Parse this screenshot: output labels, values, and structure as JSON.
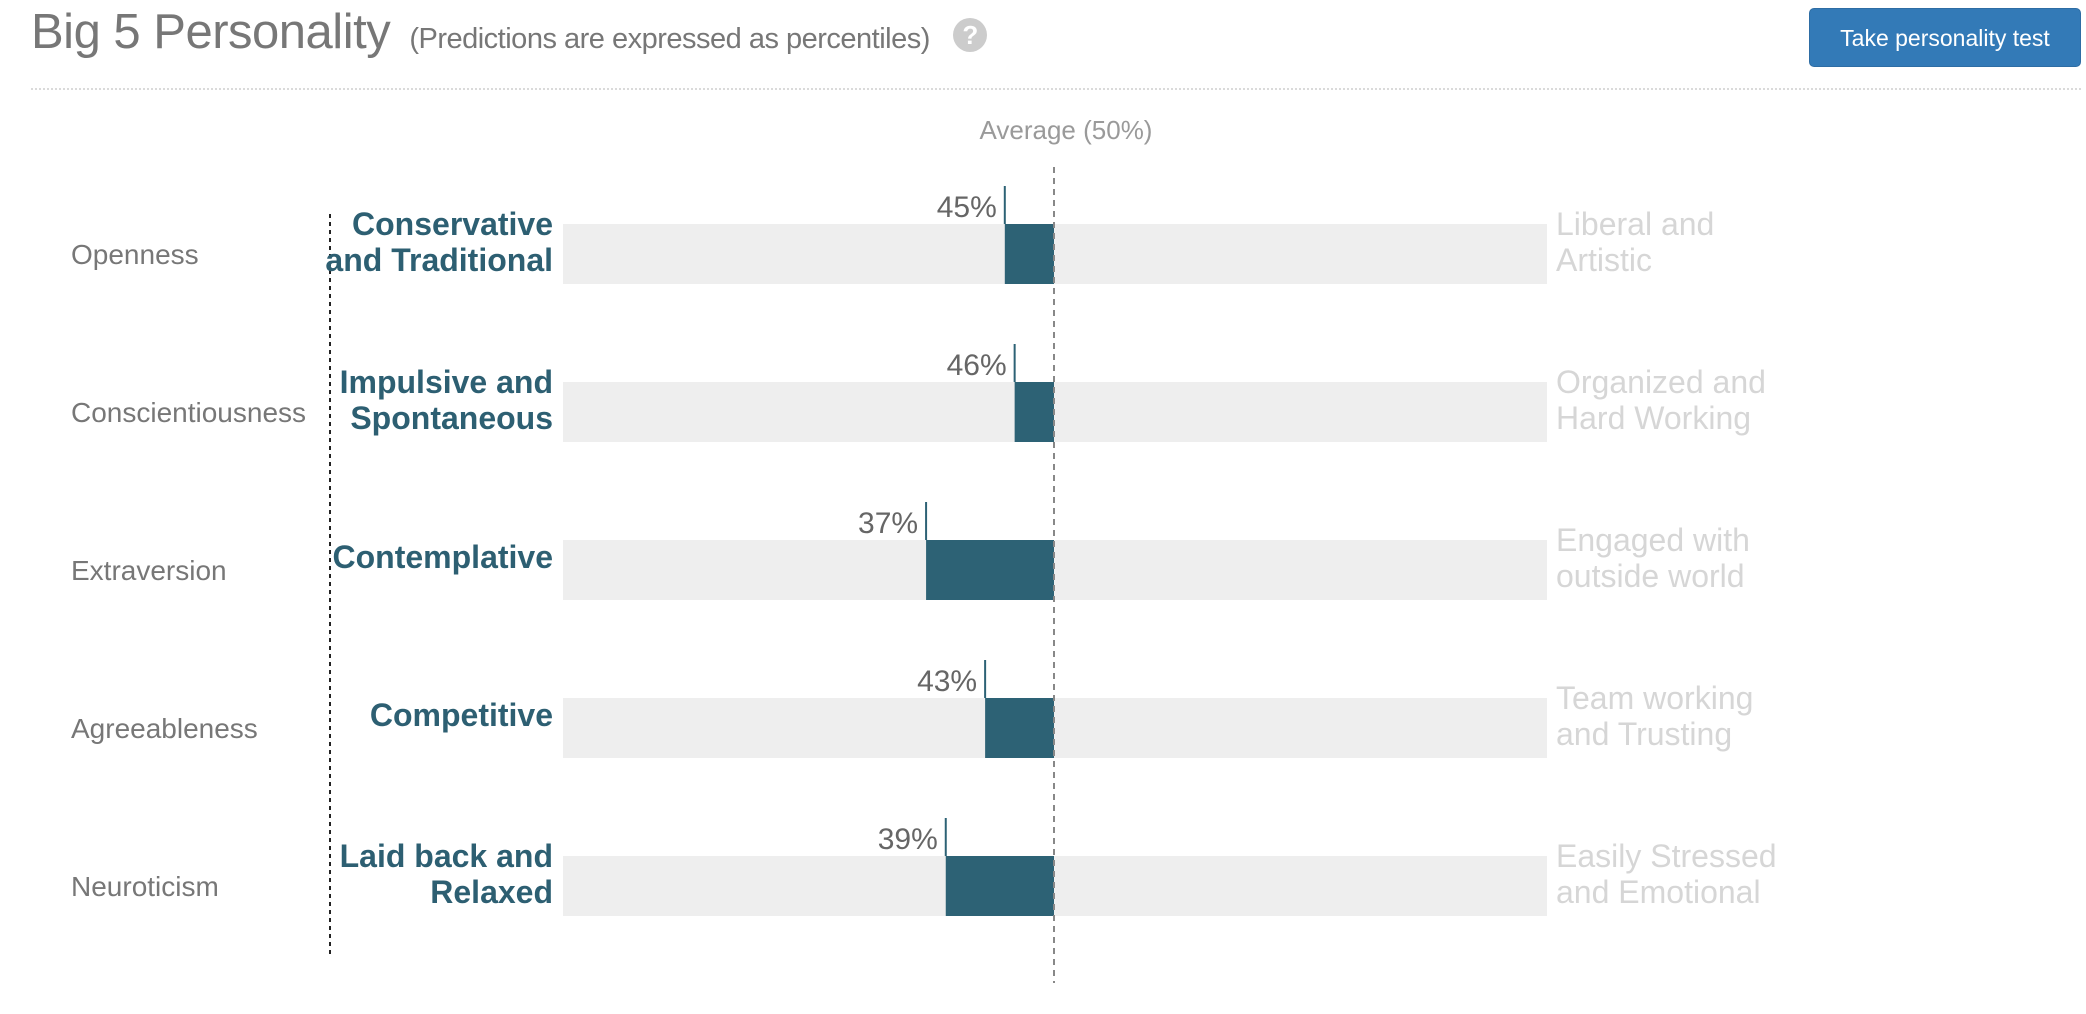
{
  "header": {
    "title": "Big 5 Personality",
    "subtitle": "(Predictions are expressed as percentiles)",
    "help_glyph": "?",
    "button_label": "Take personality test"
  },
  "colors": {
    "bar_fill": "#2d6275",
    "track": "#eeeeee",
    "low_label": "#2d5f72",
    "high_label": "#d6d6d6",
    "button": "#337ab7"
  },
  "chart_data": {
    "type": "bar",
    "title": "Big 5 Personality",
    "subtitle": "(Predictions are expressed as percentiles)",
    "unit": "%",
    "xlim": [
      0,
      100
    ],
    "baseline": 50,
    "average_label": "Average (50%)",
    "categories": [
      "Openness",
      "Conscientiousness",
      "Extraversion",
      "Agreeableness",
      "Neuroticism"
    ],
    "values": [
      45,
      46,
      37,
      43,
      39
    ],
    "value_labels": [
      "45%",
      "46%",
      "37%",
      "43%",
      "39%"
    ],
    "low_labels": [
      [
        "Conservative",
        "and Traditional"
      ],
      [
        "Impulsive and",
        "Spontaneous"
      ],
      [
        "Contemplative"
      ],
      [
        "Competitive"
      ],
      [
        "Laid back and",
        "Relaxed"
      ]
    ],
    "high_labels": [
      [
        "Liberal and",
        "Artistic"
      ],
      [
        "Organized and",
        "Hard Working"
      ],
      [
        "Engaged with",
        "outside world"
      ],
      [
        "Team working",
        "and Trusting"
      ],
      [
        "Easily Stressed",
        "and Emotional"
      ]
    ]
  }
}
